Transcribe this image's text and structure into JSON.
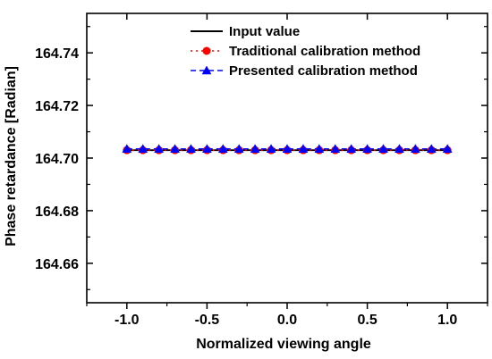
{
  "chart_data": {
    "type": "line",
    "xlabel": "Normalized viewing angle",
    "ylabel": "Phase retardance [Radian]",
    "xlim": [
      -1.25,
      1.25
    ],
    "ylim": [
      164.645,
      164.755
    ],
    "xticks": [
      -1.0,
      -0.5,
      0.0,
      0.5,
      1.0
    ],
    "xtick_labels": [
      "-1.0",
      "-0.5",
      "0.0",
      "0.5",
      "1.0"
    ],
    "yticks": [
      164.66,
      164.68,
      164.7,
      164.72,
      164.74
    ],
    "ytick_labels": [
      "164.66",
      "164.68",
      "164.70",
      "164.72",
      "164.74"
    ],
    "grid": false,
    "legend_position": "top-right",
    "x": [
      -1.0,
      -0.9,
      -0.8,
      -0.7,
      -0.6,
      -0.5,
      -0.4,
      -0.3,
      -0.2,
      -0.1,
      0.0,
      0.1,
      0.2,
      0.3,
      0.4,
      0.5,
      0.6,
      0.7,
      0.8,
      0.9,
      1.0
    ],
    "series": [
      {
        "name": "Input value",
        "style": "solid",
        "marker": "none",
        "color": "#000000",
        "values": [
          164.703,
          164.703,
          164.703,
          164.703,
          164.703,
          164.703,
          164.703,
          164.703,
          164.703,
          164.703,
          164.703,
          164.703,
          164.703,
          164.703,
          164.703,
          164.703,
          164.703,
          164.703,
          164.703,
          164.703,
          164.703
        ]
      },
      {
        "name": "Traditional calibration method",
        "style": "dotted",
        "marker": "circle",
        "color": "#ff0000",
        "values": [
          164.703,
          164.703,
          164.703,
          164.703,
          164.703,
          164.703,
          164.703,
          164.703,
          164.703,
          164.703,
          164.703,
          164.703,
          164.703,
          164.703,
          164.703,
          164.703,
          164.703,
          164.703,
          164.703,
          164.703,
          164.703
        ]
      },
      {
        "name": "Presented calibration method",
        "style": "dashed",
        "marker": "triangle",
        "color": "#0000ff",
        "values": [
          164.7035,
          164.7035,
          164.7035,
          164.7035,
          164.7035,
          164.7035,
          164.7035,
          164.7035,
          164.7035,
          164.7035,
          164.7035,
          164.7035,
          164.7035,
          164.7035,
          164.7035,
          164.7035,
          164.7035,
          164.7035,
          164.7035,
          164.7035,
          164.7035
        ]
      }
    ]
  }
}
